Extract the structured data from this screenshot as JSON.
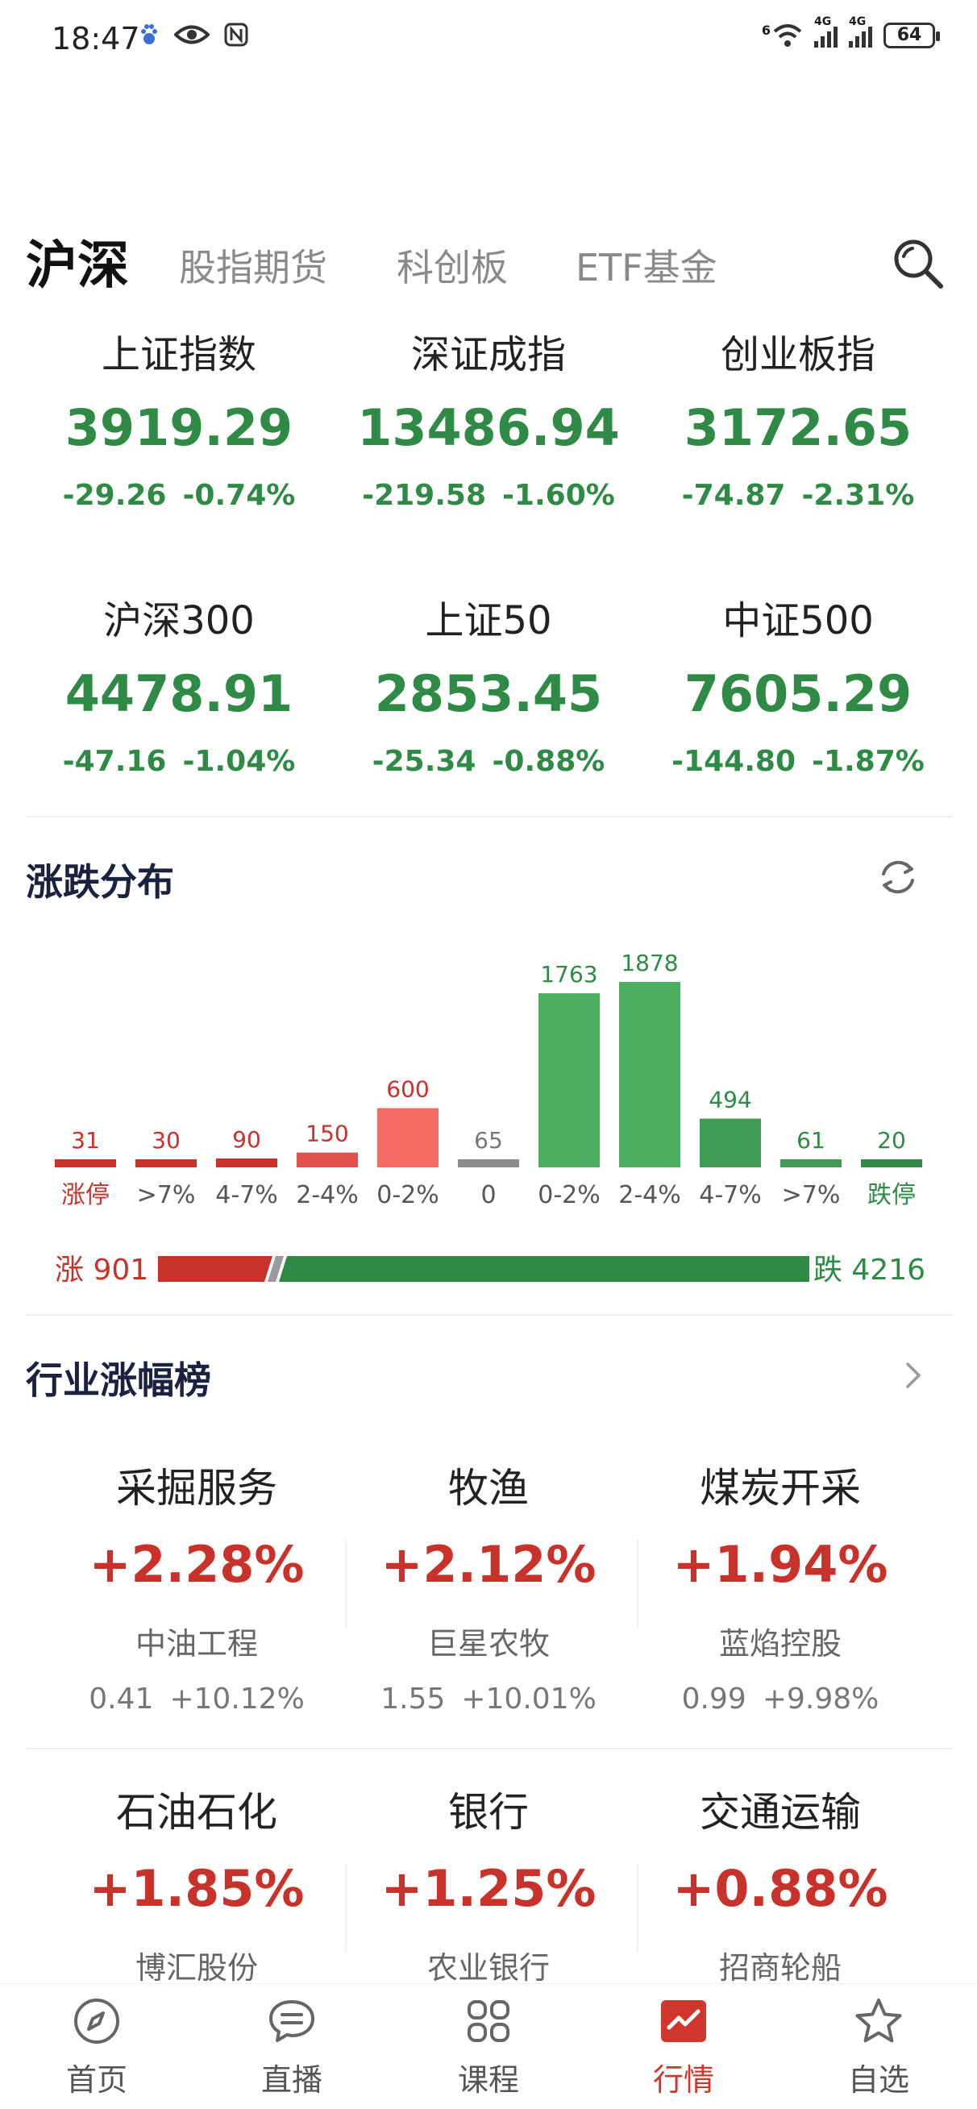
{
  "status_bar": {
    "time": "18:47",
    "network_labels": [
      "6",
      "4G",
      "4G"
    ],
    "battery": "64",
    "icons": [
      "baidu-paw-icon",
      "eye-icon",
      "nfc-icon",
      "wifi-icon",
      "signal-icon",
      "signal-icon",
      "battery-icon"
    ]
  },
  "tabs": {
    "items": [
      "沪深",
      "股指期货",
      "科创板",
      "ETF基金"
    ],
    "active": "沪深",
    "search_icon": "search-icon"
  },
  "indices": [
    {
      "name": "上证指数",
      "value": "3919.29",
      "change": "-29.26",
      "pct": "-0.74%"
    },
    {
      "name": "深证成指",
      "value": "13486.94",
      "change": "-219.58",
      "pct": "-1.60%"
    },
    {
      "name": "创业板指",
      "value": "3172.65",
      "change": "-74.87",
      "pct": "-2.31%"
    },
    {
      "name": "沪深300",
      "value": "4478.91",
      "change": "-47.16",
      "pct": "-1.04%"
    },
    {
      "name": "上证50",
      "value": "2853.45",
      "change": "-25.34",
      "pct": "-0.88%"
    },
    {
      "name": "中证500",
      "value": "7605.29",
      "change": "-144.80",
      "pct": "-1.87%"
    }
  ],
  "distribution": {
    "title": "涨跌分布",
    "refresh_icon": "refresh-icon",
    "up_label": "涨 901",
    "down_label": "跌 4216",
    "up_count": 901,
    "down_count": 4216
  },
  "chart_data": {
    "type": "bar",
    "categories": [
      "涨停",
      ">7%",
      "4-7%",
      "2-4%",
      "0-2%",
      "0",
      "0-2%",
      "2-4%",
      "4-7%",
      ">7%",
      "跌停"
    ],
    "values": [
      31,
      30,
      90,
      150,
      600,
      65,
      1763,
      1878,
      494,
      61,
      20
    ],
    "colors": [
      "#c8322a",
      "#c8322a",
      "#c8322a",
      "#e0514a",
      "#f46a61",
      "#8c8c8c",
      "#4caf5f",
      "#4caf5f",
      "#3f9c52",
      "#3f9c52",
      "#2f8a45"
    ],
    "label_colors": [
      "#c8322a",
      "#c8322a",
      "#c8322a",
      "#c8322a",
      "#c8322a",
      "#777777",
      "#2f8a45",
      "#2f8a45",
      "#2f8a45",
      "#2f8a45",
      "#2f8a45"
    ],
    "title": "",
    "xlabel": "",
    "ylabel": ""
  },
  "industry": {
    "title": "行业涨幅榜",
    "more_icon": "chevron-right-icon",
    "items": [
      {
        "name": "采掘服务",
        "pct": "+2.28%",
        "stock": "中油工程",
        "price": "0.41",
        "stock_pct": "+10.12%"
      },
      {
        "name": "牧渔",
        "pct": "+2.12%",
        "stock": "巨星农牧",
        "price": "1.55",
        "stock_pct": "+10.01%"
      },
      {
        "name": "煤炭开采",
        "pct": "+1.94%",
        "stock": "蓝焰控股",
        "price": "0.99",
        "stock_pct": "+9.98%"
      },
      {
        "name": "石油石化",
        "pct": "+1.85%",
        "stock": "博汇股份",
        "price": "",
        "stock_pct": ""
      },
      {
        "name": "银行",
        "pct": "+1.25%",
        "stock": "农业银行",
        "price": "",
        "stock_pct": ""
      },
      {
        "name": "交通运输",
        "pct": "+0.88%",
        "stock": "招商轮船",
        "price": "",
        "stock_pct": ""
      }
    ]
  },
  "bottom_nav": {
    "items": [
      {
        "label": "首页",
        "icon": "compass-icon"
      },
      {
        "label": "直播",
        "icon": "chat-bubble-icon"
      },
      {
        "label": "课程",
        "icon": "grid-icon"
      },
      {
        "label": "行情",
        "icon": "trend-icon"
      },
      {
        "label": "自选",
        "icon": "star-icon"
      }
    ],
    "active": "行情"
  },
  "colors": {
    "up": "#c8322a",
    "down": "#2f8a45",
    "neutral": "#8c8c8c"
  }
}
